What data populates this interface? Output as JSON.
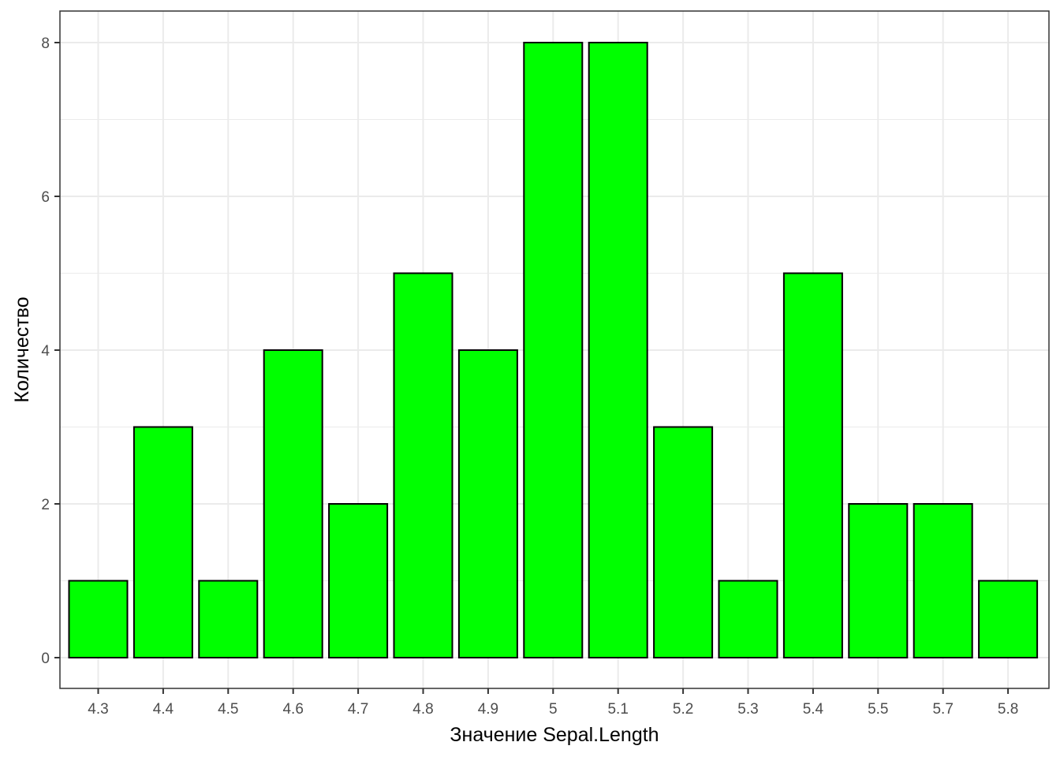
{
  "chart_data": {
    "type": "bar",
    "title": "",
    "xlabel": "Значение Sepal.Length",
    "ylabel": "Количество",
    "categories": [
      "4.3",
      "4.4",
      "4.5",
      "4.6",
      "4.7",
      "4.8",
      "4.9",
      "5",
      "5.1",
      "5.2",
      "5.3",
      "5.4",
      "5.5",
      "5.7",
      "5.8"
    ],
    "values": [
      1,
      3,
      1,
      4,
      2,
      5,
      4,
      8,
      8,
      3,
      1,
      5,
      2,
      2,
      1
    ],
    "ylim": [
      0,
      8
    ],
    "yticks": [
      0,
      2,
      4,
      6,
      8
    ],
    "grid": true,
    "legend": "none",
    "colors": {
      "bar_fill": "#00ff00",
      "bar_stroke": "#000000",
      "grid": "#ebebeb",
      "panel_border": "#333333"
    }
  }
}
